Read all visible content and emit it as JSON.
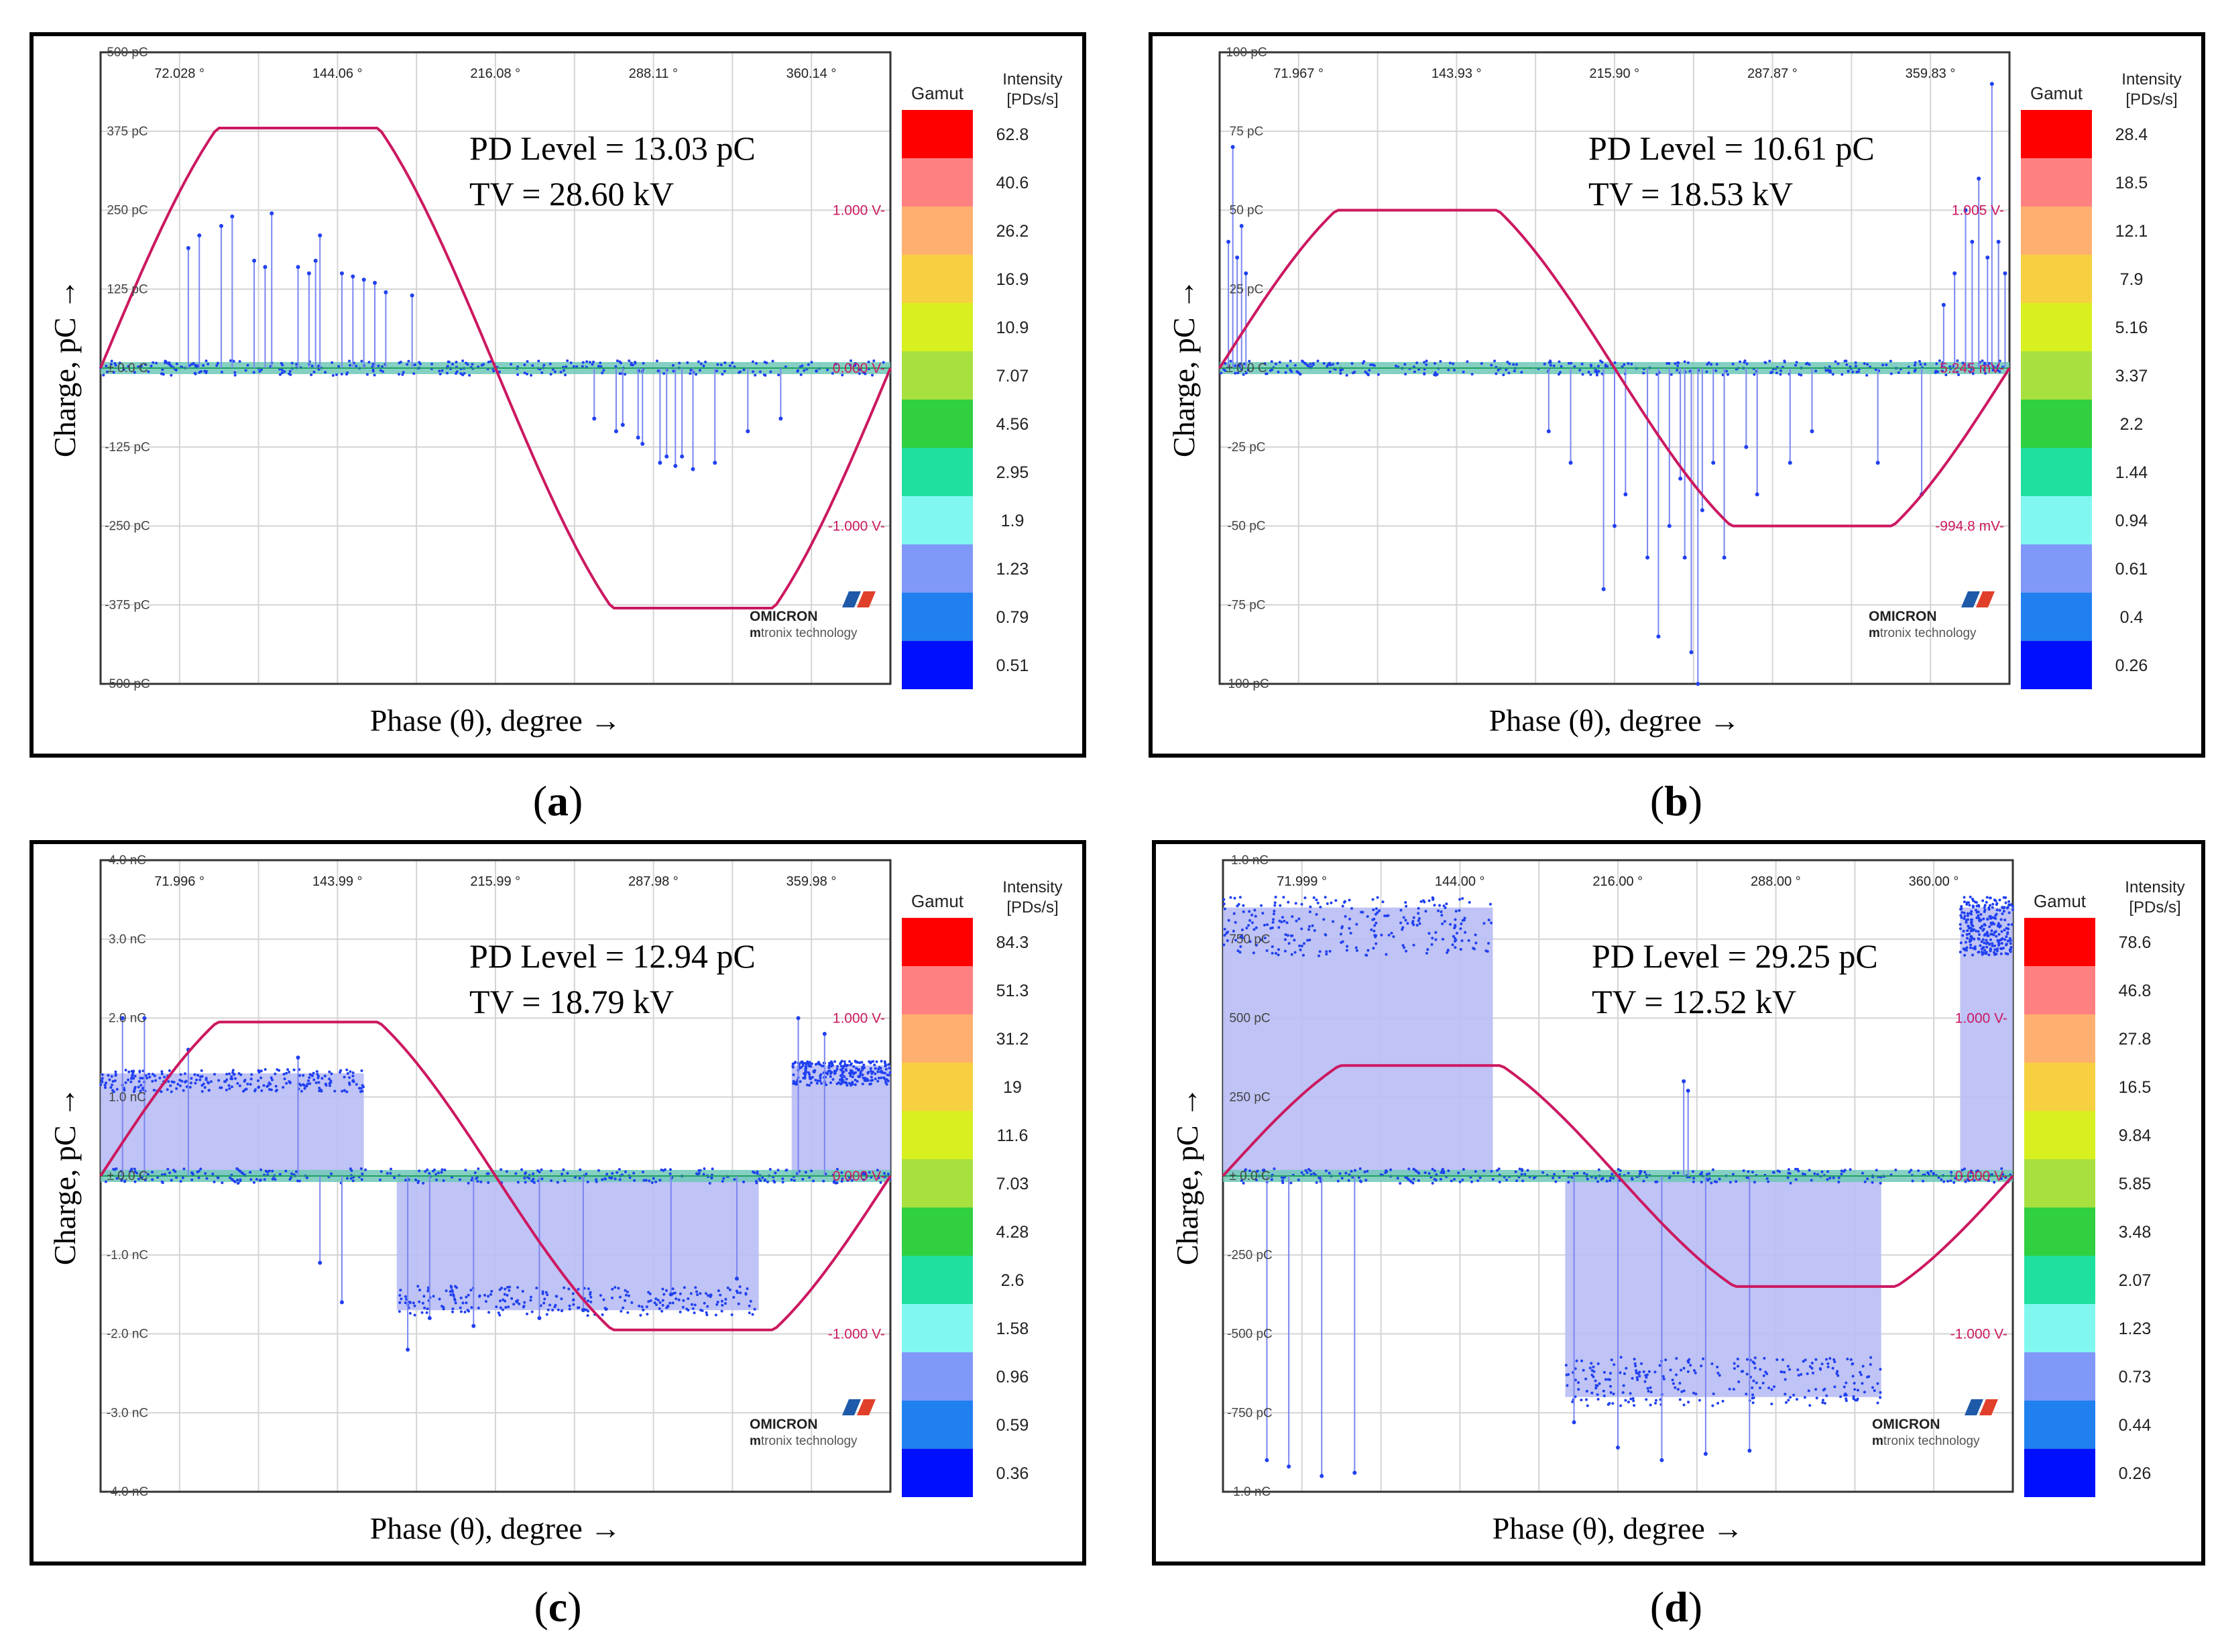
{
  "figure": {
    "y_axis_title": "Charge, pC →",
    "x_axis_title": "Phase (θ), degree →",
    "gamut_label": "Gamut",
    "intensity_label_line1": "Intensity",
    "intensity_label_line2": "[PDs/s]",
    "logo_name": "OMICRON",
    "logo_sub_bold": "m",
    "logo_sub": "tronix technology",
    "colors": {
      "gamut": [
        "#ff0000",
        "#ff8080",
        "#ffb070",
        "#f6d040",
        "#d8f020",
        "#a8e040",
        "#30d040",
        "#20e0a0",
        "#80f8f0",
        "#8098f8",
        "#2080f0",
        "#0010ff"
      ],
      "curve": "#cc1860",
      "pd_marks": "#2040f0",
      "fill": "#b8bcf4",
      "grid": "#d4d4d4"
    }
  },
  "chart_data": [
    {
      "panel": "a",
      "caption": "a",
      "type": "scatter",
      "pd_level": "PD Level = 13.03 pC",
      "tv": "TV = 28.60 kV",
      "x_ticks": [
        "72.028 °",
        "144.06 °",
        "216.08 °",
        "288.11 °",
        "360.14 °"
      ],
      "y_ticks": [
        "500 pC",
        "375 pC",
        "250 pC",
        "125 pC",
        "± 0.0 C",
        "-125 pC",
        "-250 pC",
        "-375 pC",
        "-500 pC"
      ],
      "ylim": [
        -500,
        500
      ],
      "voltage_labels": [
        "1.000 V",
        "0.000 V",
        "-1.000 V"
      ],
      "gamut_values": [
        "62.8",
        "40.6",
        "26.2",
        "16.9",
        "10.9",
        "7.07",
        "4.56",
        "2.95",
        "1.9",
        "1.23",
        "0.79",
        "0.51"
      ],
      "sine_amplitude": 380,
      "fill_pos": null,
      "fill_neg": null,
      "pulses": [
        [
          40,
          190
        ],
        [
          45,
          210
        ],
        [
          55,
          225
        ],
        [
          60,
          240
        ],
        [
          70,
          170
        ],
        [
          75,
          160
        ],
        [
          78,
          245
        ],
        [
          90,
          160
        ],
        [
          95,
          150
        ],
        [
          98,
          170
        ],
        [
          100,
          210
        ],
        [
          110,
          150
        ],
        [
          115,
          145
        ],
        [
          120,
          140
        ],
        [
          125,
          135
        ],
        [
          130,
          120
        ],
        [
          142,
          115
        ],
        [
          225,
          -80
        ],
        [
          235,
          -100
        ],
        [
          238,
          -90
        ],
        [
          245,
          -110
        ],
        [
          247,
          -120
        ],
        [
          255,
          -150
        ],
        [
          258,
          -140
        ],
        [
          262,
          -155
        ],
        [
          265,
          -140
        ],
        [
          270,
          -160
        ],
        [
          280,
          -150
        ],
        [
          295,
          -100
        ],
        [
          310,
          -80
        ]
      ]
    },
    {
      "panel": "b",
      "caption": "b",
      "type": "scatter",
      "pd_level": "PD Level = 10.61 pC",
      "tv": "TV = 18.53 kV",
      "x_ticks": [
        "71.967 °",
        "143.93 °",
        "215.90 °",
        "287.87 °",
        "359.83 °"
      ],
      "y_ticks": [
        "100 pC",
        "75 pC",
        "50 pC",
        "25 pC",
        "± 0.0 C",
        "-25 pC",
        "-50 pC",
        "-75 pC",
        "-100 pC"
      ],
      "ylim": [
        -100,
        100
      ],
      "voltage_labels": [
        "1.005 V",
        "5.245 mV",
        "-994.8 mV"
      ],
      "gamut_values": [
        "28.4",
        "18.5",
        "12.1",
        "7.9",
        "5.16",
        "3.37",
        "2.2",
        "1.44",
        "0.94",
        "0.61",
        "0.4",
        "0.26"
      ],
      "sine_amplitude": 50,
      "fill_pos": null,
      "fill_neg": null,
      "pulses": [
        [
          4,
          40
        ],
        [
          6,
          70
        ],
        [
          8,
          35
        ],
        [
          10,
          45
        ],
        [
          12,
          30
        ],
        [
          150,
          -20
        ],
        [
          160,
          -30
        ],
        [
          175,
          -70
        ],
        [
          180,
          -50
        ],
        [
          185,
          -40
        ],
        [
          195,
          -60
        ],
        [
          200,
          -85
        ],
        [
          205,
          -50
        ],
        [
          210,
          -35
        ],
        [
          212,
          -60
        ],
        [
          215,
          -90
        ],
        [
          218,
          -100
        ],
        [
          220,
          -45
        ],
        [
          225,
          -30
        ],
        [
          230,
          -60
        ],
        [
          240,
          -25
        ],
        [
          245,
          -40
        ],
        [
          260,
          -30
        ],
        [
          270,
          -20
        ],
        [
          300,
          -30
        ],
        [
          320,
          -40
        ],
        [
          340,
          50
        ],
        [
          343,
          40
        ],
        [
          346,
          60
        ],
        [
          350,
          35
        ],
        [
          352,
          90
        ],
        [
          355,
          40
        ],
        [
          358,
          30
        ],
        [
          330,
          20
        ],
        [
          335,
          30
        ]
      ]
    },
    {
      "panel": "c",
      "caption": "c",
      "type": "scatter",
      "pd_level": "PD Level = 12.94 pC",
      "tv": "TV = 18.79 kV",
      "x_ticks": [
        "71.996 °",
        "143.99 °",
        "215.99 °",
        "287.98 °",
        "359.98 °"
      ],
      "y_ticks": [
        "4.0 nC",
        "3.0 nC",
        "2.0 nC",
        "1.0 nC",
        "± 0.0 C",
        "-1.0 nC",
        "-2.0 nC",
        "-3.0 nC",
        "-4.0 nC"
      ],
      "ylim": [
        -4,
        4
      ],
      "voltage_labels": [
        "1.000 V",
        "0.000 V",
        "-1.000 V"
      ],
      "gamut_values": [
        "84.3",
        "51.3",
        "31.2",
        "19",
        "11.6",
        "7.03",
        "4.28",
        "2.6",
        "1.58",
        "0.96",
        "0.59",
        "0.36"
      ],
      "sine_amplitude": 1.95,
      "fill_pos": [
        [
          0,
          120,
          1.3
        ],
        [
          315,
          360,
          1.4
        ]
      ],
      "fill_neg": [
        [
          135,
          300,
          -1.7
        ]
      ],
      "pulses": [
        [
          10,
          2.0
        ],
        [
          20,
          2.0
        ],
        [
          40,
          1.6
        ],
        [
          90,
          1.5
        ],
        [
          100,
          -1.1
        ],
        [
          110,
          -1.6
        ],
        [
          140,
          -2.2
        ],
        [
          150,
          -1.8
        ],
        [
          170,
          -1.9
        ],
        [
          200,
          -1.8
        ],
        [
          220,
          -1.7
        ],
        [
          260,
          -1.5
        ],
        [
          290,
          -1.3
        ],
        [
          318,
          2.0
        ],
        [
          330,
          1.8
        ]
      ]
    },
    {
      "panel": "d",
      "caption": "d",
      "type": "scatter",
      "pd_level": "PD Level = 29.25 pC",
      "tv": "TV = 12.52 kV",
      "x_ticks": [
        "71.999 °",
        "144.00 °",
        "216.00 °",
        "288.00 °",
        "360.00 °"
      ],
      "y_ticks": [
        "1.0 nC",
        "750 pC",
        "500 pC",
        "250 pC",
        "± 0.0 C",
        "-250 pC",
        "-500 pC",
        "-750 pC",
        "-1.0 nC"
      ],
      "ylim": [
        -1000,
        1000
      ],
      "voltage_labels": [
        "1.000 V",
        "0.000 V",
        "-1.000 V"
      ],
      "gamut_values": [
        "78.6",
        "46.8",
        "27.8",
        "16.5",
        "9.84",
        "5.85",
        "3.48",
        "2.07",
        "1.23",
        "0.73",
        "0.44",
        "0.26"
      ],
      "sine_amplitude": 350,
      "fill_pos": [
        [
          0,
          123,
          850
        ],
        [
          336,
          360,
          850
        ]
      ],
      "fill_neg": [
        [
          156,
          300,
          -700
        ]
      ],
      "pulses": [
        [
          20,
          -900
        ],
        [
          30,
          -920
        ],
        [
          45,
          -950
        ],
        [
          60,
          -940
        ],
        [
          160,
          -780
        ],
        [
          180,
          -860
        ],
        [
          200,
          -900
        ],
        [
          220,
          -880
        ],
        [
          240,
          -870
        ],
        [
          210,
          300
        ],
        [
          212,
          270
        ]
      ]
    }
  ]
}
